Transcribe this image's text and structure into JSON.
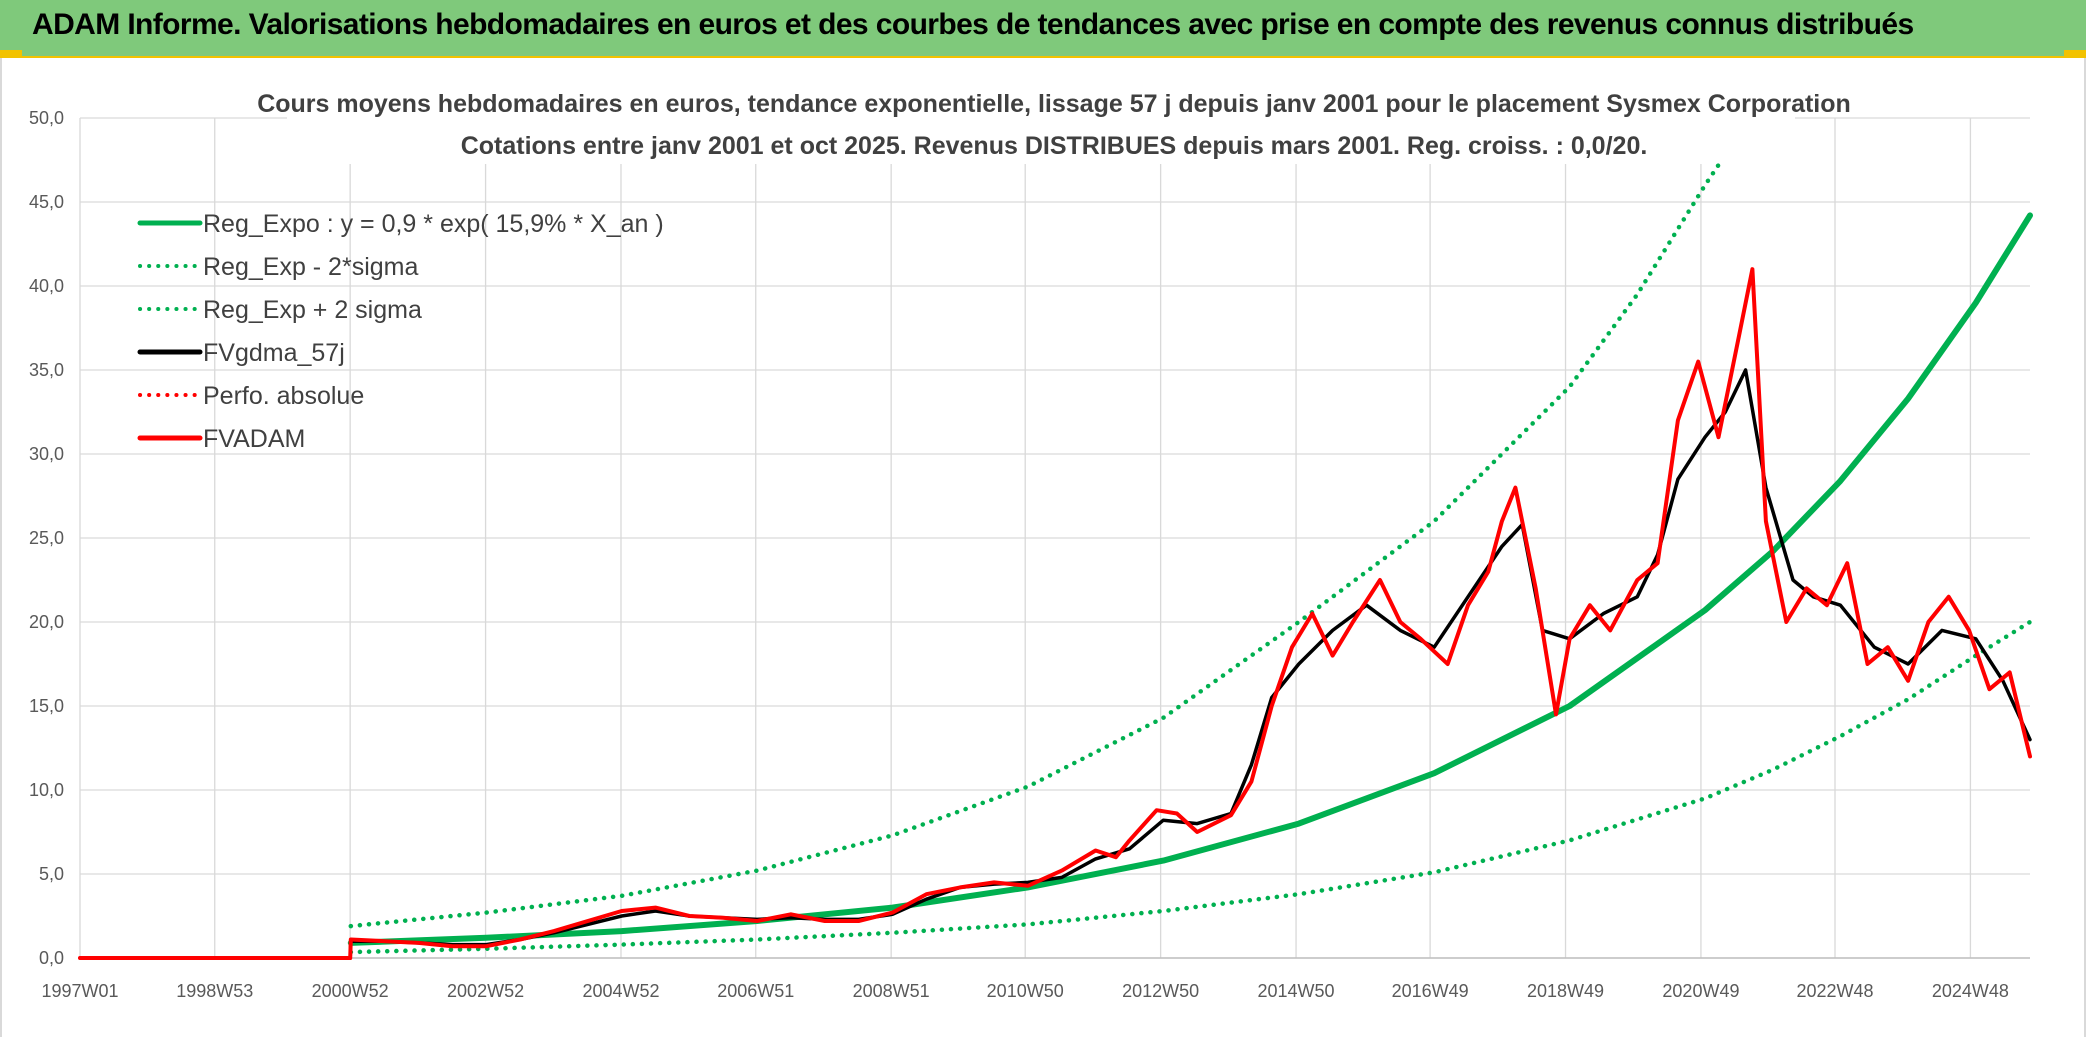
{
  "header": {
    "title": "ADAM Informe. Valorisations hebdomadaires en euros et des courbes de tendances avec prise en compte des revenus connus distribués"
  },
  "colors": {
    "header_bg": "#7fc97b",
    "green": "#00b050",
    "black": "#000000",
    "red": "#ff0000",
    "grid": "#d9d9d9"
  },
  "chart_data": {
    "type": "line",
    "title": "Cours moyens hebdomadaires en euros, tendance exponentielle, lissage 57 j depuis janv 2001 pour le placement Sysmex Corporation",
    "subtitle": "Cotations entre janv 2001 et oct 2025. Revenus DISTRIBUES depuis mars 2001. Reg. croiss. : 0,0/20.",
    "xlabel": "",
    "ylabel": "",
    "x_range": [
      1997.0,
      2025.8
    ],
    "ylim": [
      0,
      50
    ],
    "y_ticks": [
      "0,0",
      "5,0",
      "10,0",
      "15,0",
      "20,0",
      "25,0",
      "30,0",
      "35,0",
      "40,0",
      "45,0",
      "50,0"
    ],
    "x_ticks": [
      {
        "label": "1997W01",
        "x": 1997.0
      },
      {
        "label": "1998W53",
        "x": 1998.99
      },
      {
        "label": "2000W52",
        "x": 2000.99
      },
      {
        "label": "2002W52",
        "x": 2002.99
      },
      {
        "label": "2004W52",
        "x": 2004.99
      },
      {
        "label": "2006W51",
        "x": 2006.98
      },
      {
        "label": "2008W51",
        "x": 2008.98
      },
      {
        "label": "2010W50",
        "x": 2010.96
      },
      {
        "label": "2012W50",
        "x": 2012.96
      },
      {
        "label": "2014W50",
        "x": 2014.96
      },
      {
        "label": "2016W49",
        "x": 2016.94
      },
      {
        "label": "2018W49",
        "x": 2018.94
      },
      {
        "label": "2020W49",
        "x": 2020.94
      },
      {
        "label": "2022W48",
        "x": 2022.92
      },
      {
        "label": "2024W48",
        "x": 2024.92
      }
    ],
    "grid": true,
    "legend_position": "top-left",
    "legend": [
      {
        "label": "Reg_Expo : y = 0,9 * exp( 15,9% *  X_an )",
        "color": "#00b050",
        "style": "solid"
      },
      {
        "label": "Reg_Exp - 2*sigma",
        "color": "#00b050",
        "style": "dotted"
      },
      {
        "label": "Reg_Exp + 2 sigma",
        "color": "#00b050",
        "style": "dotted"
      },
      {
        "label": "FVgdma_57j",
        "color": "#000000",
        "style": "solid"
      },
      {
        "label": "Perfo. absolue",
        "color": "#ff0000",
        "style": "dotted"
      },
      {
        "label": "FVADAM",
        "color": "#ff0000",
        "style": "solid"
      }
    ],
    "series": [
      {
        "name": "Reg_Expo : y = 0,9 * exp( 15,9% *  X_an )",
        "color": "#00b050",
        "style": "solid",
        "x": [
          2001.0,
          2003.0,
          2005.0,
          2007.0,
          2009.0,
          2011.0,
          2013.0,
          2015.0,
          2017.0,
          2019.0,
          2021.0,
          2022.0,
          2023.0,
          2024.0,
          2025.0,
          2025.8
        ],
        "y": [
          0.9,
          1.2,
          1.6,
          2.2,
          3.0,
          4.2,
          5.8,
          8.0,
          11.0,
          15.0,
          20.7,
          24.2,
          28.4,
          33.3,
          39.0,
          44.2
        ]
      },
      {
        "name": "Reg_Exp - 2*sigma",
        "color": "#00b050",
        "style": "dotted",
        "x": [
          2001.0,
          2003.0,
          2005.0,
          2007.0,
          2009.0,
          2011.0,
          2013.0,
          2015.0,
          2017.0,
          2019.0,
          2021.0,
          2022.0,
          2023.0,
          2024.0,
          2025.0,
          2025.8
        ],
        "y": [
          0.35,
          0.55,
          0.8,
          1.1,
          1.5,
          2.0,
          2.8,
          3.8,
          5.1,
          7.0,
          9.5,
          11.2,
          13.2,
          15.4,
          18.0,
          20.0
        ]
      },
      {
        "name": "Reg_Exp + 2 sigma",
        "color": "#00b050",
        "style": "dotted",
        "x": [
          2001.0,
          2003.0,
          2005.0,
          2007.0,
          2009.0,
          2011.0,
          2013.0,
          2015.0,
          2017.0,
          2019.0,
          2020.0,
          2021.0,
          2021.2
        ],
        "y": [
          1.9,
          2.7,
          3.7,
          5.2,
          7.3,
          10.2,
          14.3,
          20.0,
          26.0,
          34.0,
          39.5,
          46.0,
          47.2
        ]
      },
      {
        "name": "FVgdma_57j",
        "color": "#000000",
        "style": "solid",
        "x": [
          1997.0,
          2000.99,
          2001.0,
          2001.5,
          2002.0,
          2002.5,
          2003.0,
          2003.5,
          2004.0,
          2004.5,
          2005.0,
          2005.5,
          2006.0,
          2006.5,
          2007.0,
          2007.5,
          2008.0,
          2008.5,
          2009.0,
          2009.5,
          2010.0,
          2010.5,
          2011.0,
          2011.5,
          2012.0,
          2012.5,
          2013.0,
          2013.5,
          2014.0,
          2014.3,
          2014.6,
          2015.0,
          2015.5,
          2016.0,
          2016.5,
          2017.0,
          2017.5,
          2018.0,
          2018.3,
          2018.6,
          2019.0,
          2019.5,
          2020.0,
          2020.3,
          2020.6,
          2021.0,
          2021.3,
          2021.6,
          2021.9,
          2022.3,
          2022.6,
          2023.0,
          2023.5,
          2024.0,
          2024.5,
          2025.0,
          2025.4,
          2025.8
        ],
        "y": [
          0,
          0,
          1.0,
          1.0,
          0.9,
          0.8,
          0.8,
          1.1,
          1.5,
          2.0,
          2.5,
          2.8,
          2.5,
          2.4,
          2.3,
          2.4,
          2.3,
          2.3,
          2.6,
          3.5,
          4.2,
          4.4,
          4.5,
          4.8,
          5.9,
          6.5,
          8.2,
          8.0,
          8.6,
          11.5,
          15.5,
          17.5,
          19.5,
          21.0,
          19.5,
          18.5,
          21.5,
          24.5,
          25.8,
          19.5,
          19.0,
          20.5,
          21.5,
          24.0,
          28.5,
          31.0,
          32.5,
          35.0,
          28.0,
          22.5,
          21.5,
          21.0,
          18.5,
          17.5,
          19.5,
          19.0,
          16.5,
          13.0
        ]
      },
      {
        "name": "Perfo. absolue",
        "color": "#ff0000",
        "style": "dotted",
        "x": [
          1997.0,
          2000.99
        ],
        "y": [
          0,
          0
        ]
      },
      {
        "name": "FVADAM",
        "color": "#ff0000",
        "style": "solid",
        "x": [
          1997.0,
          2000.99,
          2001.0,
          2001.5,
          2002.0,
          2002.5,
          2003.0,
          2003.5,
          2004.0,
          2004.5,
          2005.0,
          2005.5,
          2006.0,
          2006.5,
          2007.0,
          2007.5,
          2008.0,
          2008.5,
          2009.0,
          2009.5,
          2010.0,
          2010.5,
          2011.0,
          2011.5,
          2012.0,
          2012.3,
          2012.5,
          2012.9,
          2013.2,
          2013.5,
          2014.0,
          2014.3,
          2014.6,
          2014.9,
          2015.2,
          2015.5,
          2015.8,
          2016.2,
          2016.5,
          2016.8,
          2017.2,
          2017.5,
          2017.8,
          2018.0,
          2018.2,
          2018.5,
          2018.8,
          2019.0,
          2019.3,
          2019.6,
          2020.0,
          2020.3,
          2020.6,
          2020.9,
          2021.2,
          2021.5,
          2021.7,
          2021.9,
          2022.2,
          2022.5,
          2022.8,
          2023.1,
          2023.4,
          2023.7,
          2024.0,
          2024.3,
          2024.6,
          2024.9,
          2025.2,
          2025.5,
          2025.8
        ],
        "y": [
          0,
          0,
          1.1,
          1.0,
          0.9,
          0.7,
          0.7,
          1.1,
          1.6,
          2.2,
          2.8,
          3.0,
          2.5,
          2.4,
          2.2,
          2.6,
          2.2,
          2.2,
          2.7,
          3.8,
          4.2,
          4.5,
          4.3,
          5.2,
          6.4,
          6.0,
          7.0,
          8.8,
          8.6,
          7.5,
          8.5,
          10.5,
          15.0,
          18.5,
          20.5,
          18.0,
          20.0,
          22.5,
          20.0,
          19.0,
          17.5,
          21.0,
          23.0,
          26.0,
          28.0,
          22.0,
          14.5,
          19.0,
          21.0,
          19.5,
          22.5,
          23.5,
          32.0,
          35.5,
          31.0,
          37.0,
          41.0,
          26.0,
          20.0,
          22.0,
          21.0,
          23.5,
          17.5,
          18.5,
          16.5,
          20.0,
          21.5,
          19.5,
          16.0,
          17.0,
          12.0
        ]
      }
    ]
  }
}
